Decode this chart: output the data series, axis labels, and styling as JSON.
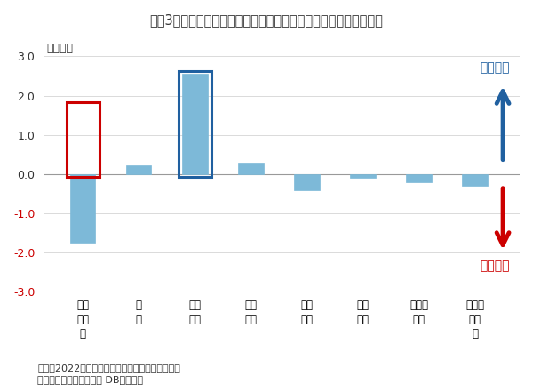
{
  "title": "図表3　年初来では海外投資家の売りを、事業法人の買いが支える",
  "categories": [
    "海外\n投資\n家",
    "個\n人",
    "事業\n法人",
    "信託\n銀行",
    "投資\n信託",
    "証券\n会社",
    "生保・\n損保",
    "都銀・\n地銀\n等"
  ],
  "values": [
    -1.75,
    0.22,
    2.55,
    0.28,
    -0.42,
    -0.1,
    -0.22,
    -0.3
  ],
  "bar_color": "#7db9d8",
  "highlight_red_index": 0,
  "highlight_blue_index": 2,
  "highlight_red_color": "#cc0000",
  "highlight_blue_color": "#2060a0",
  "ylabel": "（兆円）",
  "ylim": [
    -3.0,
    3.5
  ],
  "yticks": [
    -3.0,
    -2.0,
    -1.0,
    0.0,
    1.0,
    2.0,
    3.0
  ],
  "ytick_labels": [
    "-3.0",
    "-2.0",
    "-1.0",
    "0.0",
    "1.0",
    "2.0",
    "3.0"
  ],
  "background_color": "#ffffff",
  "note_line1": "（注）2022年１月～７月の現物と先物の売買動向",
  "note_line2": "（資料）ニッセイ基礎研 DBから作成",
  "arrow_buy_color": "#2060a0",
  "arrow_sell_color": "#cc0000",
  "buy_label": "買い越し",
  "sell_label": "売り越し",
  "grid_color": "#cccccc",
  "zero_line_color": "#999999",
  "text_color": "#333333",
  "red_tick_color": "#cc0000"
}
